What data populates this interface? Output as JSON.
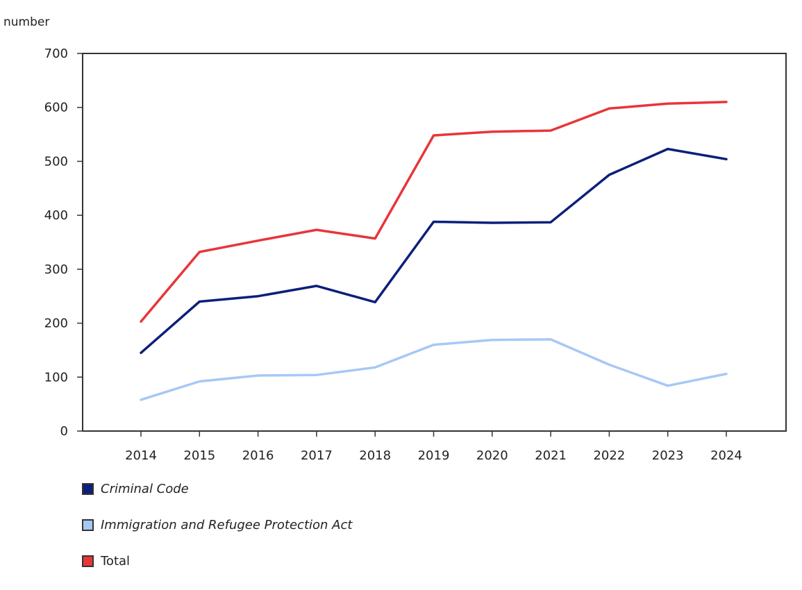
{
  "chart_data": {
    "type": "line",
    "ylabel": "number",
    "xlabel": "",
    "title": "",
    "ylim": [
      0,
      700
    ],
    "y_ticks": [
      "0",
      "100",
      "200",
      "300",
      "400",
      "500",
      "600",
      "700"
    ],
    "categories": [
      "2014",
      "2015",
      "2016",
      "2017",
      "2018",
      "2019",
      "2020",
      "2021",
      "2022",
      "2023",
      "2024"
    ],
    "series": [
      {
        "name": "Criminal Code",
        "italic": true,
        "color": "#0c1f7a",
        "values": [
          145,
          240,
          250,
          269,
          239,
          388,
          386,
          387,
          475,
          523,
          504
        ]
      },
      {
        "name": "Immigration and Refugee Protection Act",
        "italic": true,
        "color": "#a6c8f5",
        "values": [
          58,
          92,
          103,
          104,
          118,
          160,
          169,
          170,
          123,
          84,
          106
        ]
      },
      {
        "name": "Total",
        "italic": false,
        "color": "#e8353a",
        "values": [
          203,
          332,
          353,
          373,
          357,
          548,
          555,
          557,
          598,
          607,
          610
        ]
      }
    ],
    "legend_position": "bottom-left",
    "grid": false
  }
}
